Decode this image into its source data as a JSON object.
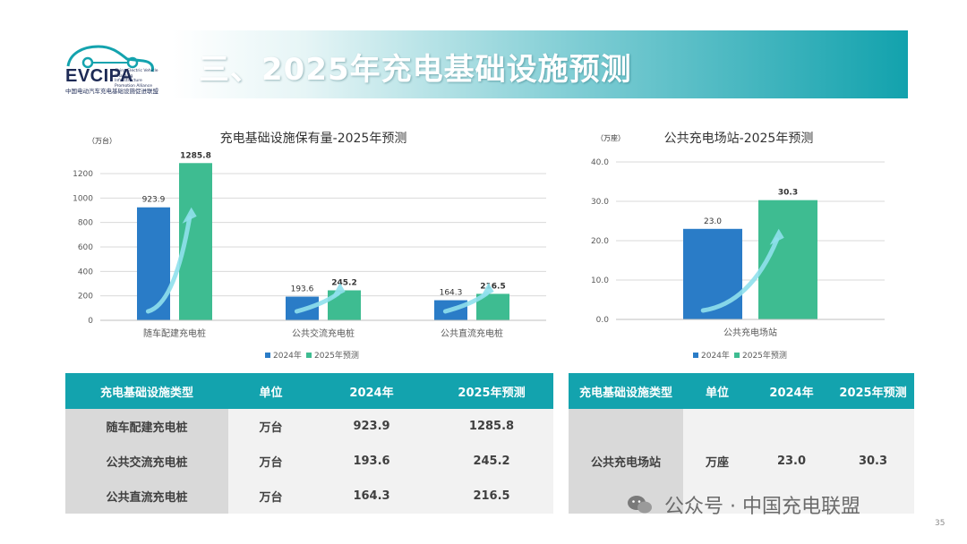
{
  "logo": {
    "title": "EVCIPA",
    "en_name": "China Electric Vehicle Charging Infrastructure Promotion Alliance",
    "cn_name": "中国电动汽车充电基础设施促进联盟"
  },
  "header": {
    "title": "三、2025年充电基础设施预测"
  },
  "chart_data": [
    {
      "type": "bar",
      "title": "充电基础设施保有量-2025年预测",
      "ylabel": "（万台）",
      "categories": [
        "随车配建充电桩",
        "公共交流充电桩",
        "公共直流充电桩"
      ],
      "series": [
        {
          "name": "2024年",
          "values": [
            923.9,
            193.6,
            164.3
          ],
          "color": "#2a7cc7"
        },
        {
          "name": "2025年预测",
          "values": [
            1285.8,
            245.2,
            216.5
          ],
          "color": "#3ebc91"
        }
      ],
      "ylim": [
        0,
        1200
      ],
      "yticks": [
        0,
        200,
        400,
        600,
        800,
        1000,
        1200
      ],
      "grid": true,
      "legend": "bottom"
    },
    {
      "type": "bar",
      "title": "公共充电场站-2025年预测",
      "ylabel": "（万座）",
      "categories": [
        "公共充电场站"
      ],
      "series": [
        {
          "name": "2024年",
          "values": [
            23.0
          ],
          "color": "#2a7cc7"
        },
        {
          "name": "2025年预测",
          "values": [
            30.3
          ],
          "color": "#3ebc91"
        }
      ],
      "ylim": [
        0,
        40
      ],
      "yticks": [
        "0.0",
        "10.0",
        "20.0",
        "30.0",
        "40.0"
      ],
      "grid": true,
      "legend": "bottom"
    }
  ],
  "table_left": {
    "headers": [
      "充电基础设施类型",
      "单位",
      "2024年",
      "2025年预测"
    ],
    "rows": [
      [
        "随车配建充电桩",
        "万台",
        "923.9",
        "1285.8"
      ],
      [
        "公共交流充电桩",
        "万台",
        "193.6",
        "245.2"
      ],
      [
        "公共直流充电桩",
        "万台",
        "164.3",
        "216.5"
      ]
    ]
  },
  "table_right": {
    "headers": [
      "充电基础设施类型",
      "单位",
      "2024年",
      "2025年预测"
    ],
    "rows": [
      [
        "公共充电场站",
        "万座",
        "23.0",
        "30.3"
      ]
    ]
  },
  "footer": {
    "watermark": "公众号 · 中国充电联盟",
    "page_number": "35"
  }
}
